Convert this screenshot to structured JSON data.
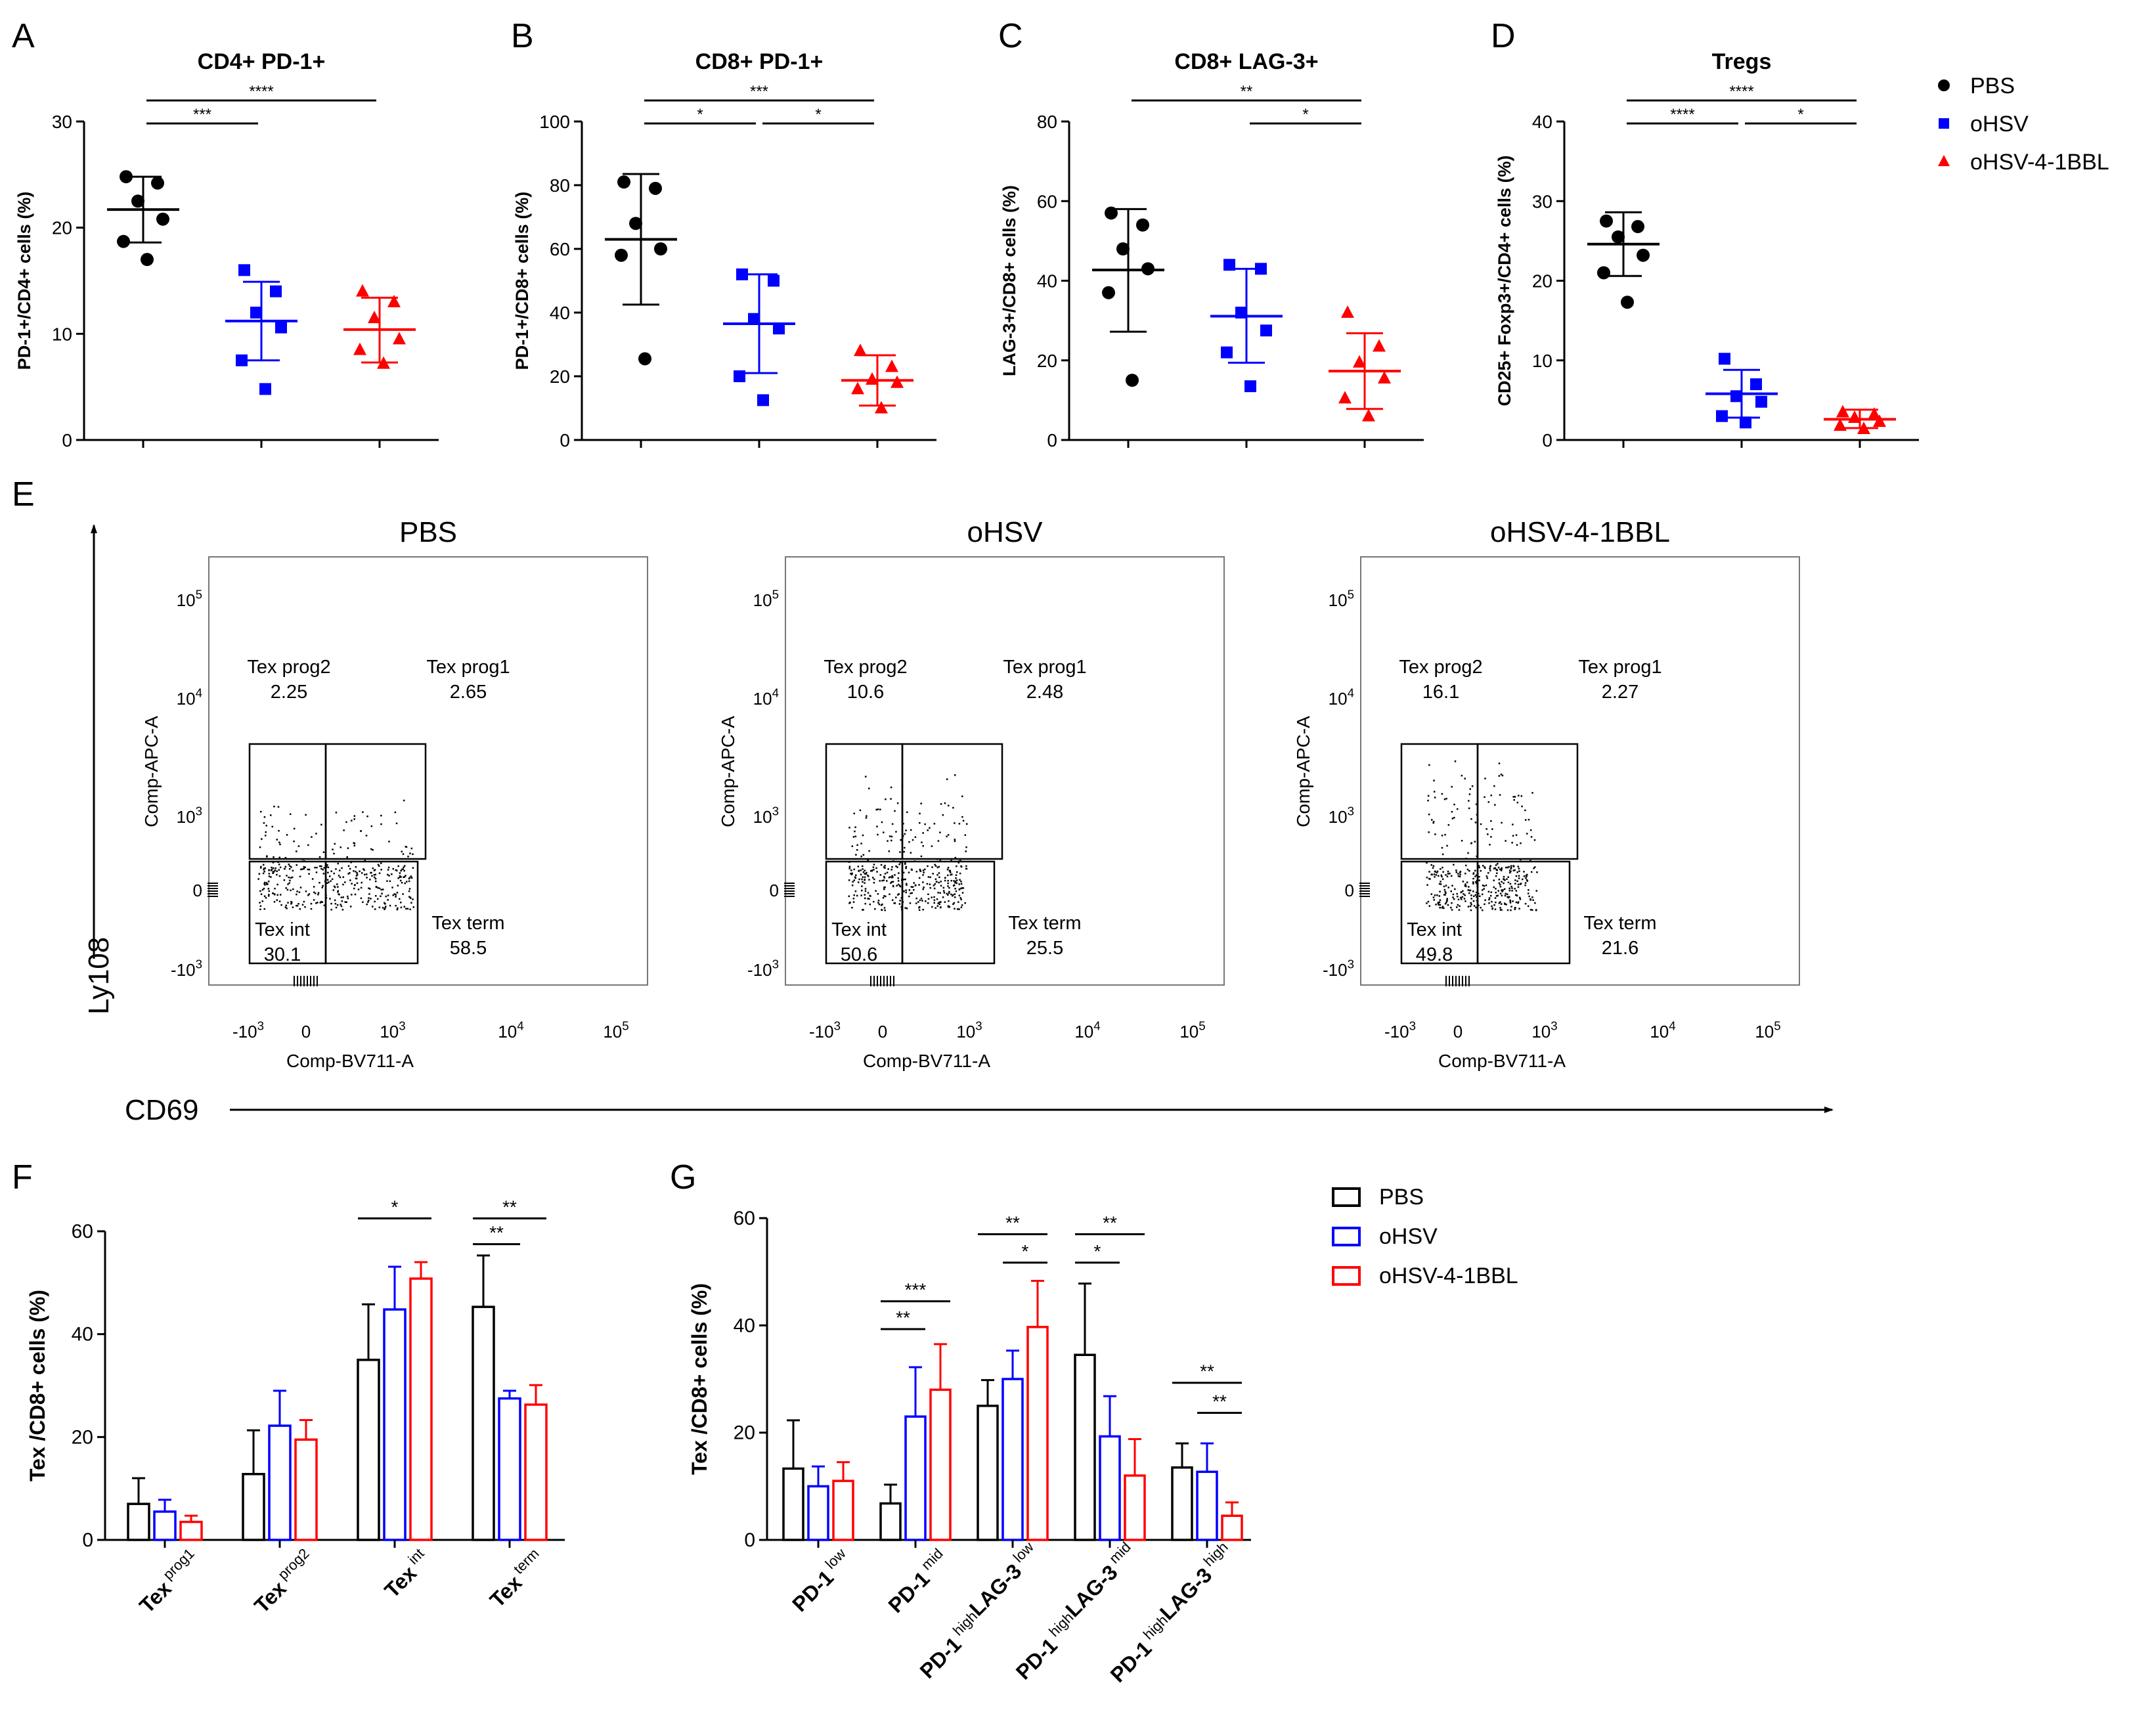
{
  "legend_top": {
    "items": [
      {
        "label": "PBS",
        "color": "#000000",
        "marker": "circle"
      },
      {
        "label": "oHSV",
        "color": "#0000ff",
        "marker": "square"
      },
      {
        "label": "oHSV-4-1BBL",
        "color": "#ff0000",
        "marker": "triangle"
      }
    ]
  },
  "legend_bottom": {
    "items": [
      {
        "label": "PBS",
        "color": "#000000"
      },
      {
        "label": "oHSV",
        "color": "#0000ff"
      },
      {
        "label": "oHSV-4-1BBL",
        "color": "#ff0000"
      }
    ]
  },
  "colors": {
    "PBS": "#000000",
    "oHSV": "#0000ff",
    "oHSV-4-1BBL": "#ff0000"
  },
  "chart_data": [
    {
      "panel": "A",
      "type": "scatter",
      "title": "CD4+ PD-1+",
      "ylabel": "PD-1+/CD4+ cells (%)",
      "ylim": [
        0,
        30
      ],
      "yticks": [
        0,
        10,
        20,
        30
      ],
      "groups": [
        {
          "name": "PBS",
          "points": [
            24.8,
            24.2,
            22.5,
            20.8,
            18.7,
            17.0
          ],
          "mean": 21.7,
          "sd_low": 18.6,
          "sd_high": 24.8
        },
        {
          "name": "oHSV",
          "points": [
            16.0,
            14.0,
            12.0,
            10.6,
            7.5,
            4.8
          ],
          "mean": 11.2,
          "sd_low": 7.5,
          "sd_high": 14.9
        },
        {
          "name": "oHSV-4-1BBL",
          "points": [
            14.0,
            13.0,
            11.5,
            9.5,
            8.5,
            7.2
          ],
          "mean": 10.4,
          "sd_low": 7.3,
          "sd_high": 13.4
        }
      ],
      "sig": [
        {
          "from": 0,
          "to": 1,
          "label": "***",
          "level": 0
        },
        {
          "from": 0,
          "to": 2,
          "label": "****",
          "level": 1
        }
      ]
    },
    {
      "panel": "B",
      "type": "scatter",
      "title": "CD8+ PD-1+",
      "ylabel": "PD-1+/CD8+ cells (%)",
      "ylim": [
        0,
        100
      ],
      "yticks": [
        0,
        20,
        40,
        60,
        80,
        100
      ],
      "groups": [
        {
          "name": "PBS",
          "points": [
            81.0,
            79.0,
            68.0,
            60.0,
            58.0,
            25.5
          ],
          "mean": 63.0,
          "sd_low": 42.5,
          "sd_high": 83.5
        },
        {
          "name": "oHSV",
          "points": [
            52.0,
            50.0,
            38.0,
            35.0,
            20.0,
            12.5
          ],
          "mean": 36.5,
          "sd_low": 21.0,
          "sd_high": 52.0
        },
        {
          "name": "oHSV-4-1BBL",
          "points": [
            28.0,
            23.0,
            19.0,
            18.0,
            16.0,
            10.0
          ],
          "mean": 18.7,
          "sd_low": 10.8,
          "sd_high": 26.6
        }
      ],
      "sig": [
        {
          "from": 0,
          "to": 1,
          "label": "*",
          "level": 0
        },
        {
          "from": 1,
          "to": 2,
          "label": "*",
          "level": 0
        },
        {
          "from": 0,
          "to": 2,
          "label": "***",
          "level": 1
        }
      ]
    },
    {
      "panel": "C",
      "type": "scatter",
      "title": "CD8+ LAG-3+",
      "ylabel": "LAG-3+/CD8+ cells (%)",
      "ylim": [
        0,
        80
      ],
      "yticks": [
        0,
        20,
        40,
        60,
        80
      ],
      "groups": [
        {
          "name": "PBS",
          "points": [
            57.0,
            54.0,
            48.0,
            43.0,
            37.0,
            15.0
          ],
          "mean": 42.7,
          "sd_low": 27.2,
          "sd_high": 58.0
        },
        {
          "name": "oHSV",
          "points": [
            44.0,
            43.0,
            32.0,
            27.5,
            22.0,
            13.5
          ],
          "mean": 31.1,
          "sd_low": 19.4,
          "sd_high": 43.0
        },
        {
          "name": "oHSV-4-1BBL",
          "points": [
            32.0,
            23.5,
            19.5,
            15.5,
            10.5,
            6.0
          ],
          "mean": 17.3,
          "sd_low": 7.8,
          "sd_high": 26.8
        }
      ],
      "sig": [
        {
          "from": 1,
          "to": 2,
          "label": "*",
          "level": 0
        },
        {
          "from": 0,
          "to": 2,
          "label": "**",
          "level": 1
        }
      ]
    },
    {
      "panel": "D",
      "type": "scatter",
      "title": "Tregs",
      "ylabel": "CD25+ Foxp3+/CD4+ cells (%)",
      "ylim": [
        0,
        40
      ],
      "yticks": [
        0,
        10,
        20,
        30,
        40
      ],
      "groups": [
        {
          "name": "PBS",
          "points": [
            27.5,
            26.8,
            25.5,
            23.2,
            21.0,
            17.3
          ],
          "mean": 24.6,
          "sd_low": 20.6,
          "sd_high": 28.6
        },
        {
          "name": "oHSV",
          "points": [
            10.2,
            7.0,
            5.5,
            4.8,
            3.0,
            2.2
          ],
          "mean": 5.8,
          "sd_low": 2.8,
          "sd_high": 8.8
        },
        {
          "name": "oHSV-4-1BBL",
          "points": [
            3.5,
            3.2,
            2.8,
            2.3,
            1.8,
            1.4
          ],
          "mean": 2.6,
          "sd_low": 1.5,
          "sd_high": 3.8
        }
      ],
      "sig": [
        {
          "from": 0,
          "to": 1,
          "label": "****",
          "level": 0
        },
        {
          "from": 1,
          "to": 2,
          "label": "*",
          "level": 0
        },
        {
          "from": 0,
          "to": 2,
          "label": "****",
          "level": 1
        }
      ]
    },
    {
      "panel": "F",
      "type": "bar",
      "ylabel": "Tex /CD8+ cells (%)",
      "ylim": [
        0,
        60
      ],
      "yticks": [
        0,
        20,
        40,
        60
      ],
      "categories": [
        {
          "main": "Tex",
          "sup": "prog1"
        },
        {
          "main": "Tex",
          "sup": "prog2"
        },
        {
          "main": "Tex",
          "sup": "int"
        },
        {
          "main": "Tex",
          "sup": "term"
        }
      ],
      "series": [
        {
          "name": "PBS",
          "values": [
            7.0,
            12.8,
            35.0,
            45.3
          ],
          "sd": [
            5.0,
            8.5,
            10.8,
            10.0
          ]
        },
        {
          "name": "oHSV",
          "values": [
            5.5,
            22.2,
            44.8,
            27.5
          ],
          "sd": [
            2.3,
            6.8,
            8.3,
            1.5
          ]
        },
        {
          "name": "oHSV-4-1BBL",
          "values": [
            3.5,
            19.5,
            50.8,
            26.3
          ],
          "sd": [
            1.2,
            3.8,
            3.2,
            3.8
          ]
        }
      ],
      "sig": [
        {
          "cat": 2,
          "from": 0,
          "to": 2,
          "label": "*",
          "value": 62.5
        },
        {
          "cat": 3,
          "from": 0,
          "to": 1,
          "label": "**",
          "value": 57.5
        },
        {
          "cat": 3,
          "from": 0,
          "to": 2,
          "label": "**",
          "value": 62.5
        }
      ]
    },
    {
      "panel": "G",
      "type": "bar",
      "ylabel": "Tex /CD8+ cells (%)",
      "ylim": [
        0,
        60
      ],
      "yticks": [
        0,
        20,
        40,
        60
      ],
      "categories": [
        {
          "parts": [
            [
              "PD-1",
              "low"
            ]
          ]
        },
        {
          "parts": [
            [
              "PD-1",
              "mid"
            ]
          ]
        },
        {
          "parts": [
            [
              "PD-1",
              "high"
            ],
            [
              "LAG-3",
              "low"
            ]
          ]
        },
        {
          "parts": [
            [
              "PD-1",
              "high"
            ],
            [
              "LAG-3",
              "mid"
            ]
          ]
        },
        {
          "parts": [
            [
              "PD-1",
              "high"
            ],
            [
              "LAG-3",
              "high"
            ]
          ]
        }
      ],
      "series": [
        {
          "name": "PBS",
          "values": [
            13.3,
            6.8,
            25.0,
            34.5,
            13.5
          ],
          "sd": [
            9.0,
            3.5,
            4.8,
            13.3,
            4.5
          ]
        },
        {
          "name": "oHSV",
          "values": [
            10.0,
            23.0,
            30.0,
            19.3,
            12.7
          ],
          "sd": [
            3.7,
            9.2,
            5.3,
            7.5,
            5.3
          ]
        },
        {
          "name": "oHSV-4-1BBL",
          "values": [
            11.0,
            28.0,
            39.7,
            12.0,
            4.5
          ],
          "sd": [
            3.5,
            8.5,
            8.6,
            6.8,
            2.5
          ]
        }
      ],
      "sig": [
        {
          "cat": 1,
          "from": 0,
          "to": 1,
          "label": "**",
          "value": 39.3
        },
        {
          "cat": 1,
          "from": 0,
          "to": 2,
          "label": "***",
          "value": 44.5
        },
        {
          "cat": 2,
          "from": 0,
          "to": 2,
          "label": "**",
          "value": 57.0
        },
        {
          "cat": 2,
          "from": 1,
          "to": 2,
          "label": "*",
          "value": 51.7
        },
        {
          "cat": 3,
          "from": 0,
          "to": 1,
          "label": "*",
          "value": 51.7
        },
        {
          "cat": 3,
          "from": 0,
          "to": 2,
          "label": "**",
          "value": 57.0
        },
        {
          "cat": 4,
          "from": 0,
          "to": 2,
          "label": "**",
          "value": 29.3
        },
        {
          "cat": 4,
          "from": 1,
          "to": 2,
          "label": "**",
          "value": 23.7
        }
      ]
    }
  ],
  "flow": {
    "panel": "E",
    "axis_y_label": "Ly108",
    "axis_x_label": "CD69",
    "plot_y_label": "Comp-APC-A",
    "plot_x_label": "Comp-BV711-A",
    "y_ticks": [
      {
        "base": "10",
        "exp": "5"
      },
      {
        "base": "10",
        "exp": "4"
      },
      {
        "base": "10",
        "exp": "3"
      },
      {
        "base": "0",
        "exp": ""
      },
      {
        "base": "-10",
        "exp": "3"
      }
    ],
    "x_ticks": [
      {
        "base": "-10",
        "exp": "3"
      },
      {
        "base": "0",
        "exp": ""
      },
      {
        "base": "10",
        "exp": "3"
      },
      {
        "base": "10",
        "exp": "4"
      },
      {
        "base": "10",
        "exp": "5"
      }
    ],
    "plots": [
      {
        "title": "PBS",
        "gates": [
          {
            "name": "Tex prog2",
            "value": "2.25"
          },
          {
            "name": "Tex prog1",
            "value": "2.65"
          },
          {
            "name": "Tex int",
            "value": "30.1"
          },
          {
            "name": "Tex term",
            "value": "58.5"
          }
        ]
      },
      {
        "title": "oHSV",
        "gates": [
          {
            "name": "Tex prog2",
            "value": "10.6"
          },
          {
            "name": "Tex prog1",
            "value": "2.48"
          },
          {
            "name": "Tex int",
            "value": "50.6"
          },
          {
            "name": "Tex term",
            "value": "25.5"
          }
        ]
      },
      {
        "title": "oHSV-4-1BBL",
        "gates": [
          {
            "name": "Tex prog2",
            "value": "16.1"
          },
          {
            "name": "Tex prog1",
            "value": "2.27"
          },
          {
            "name": "Tex int",
            "value": "49.8"
          },
          {
            "name": "Tex term",
            "value": "21.6"
          }
        ]
      }
    ]
  }
}
